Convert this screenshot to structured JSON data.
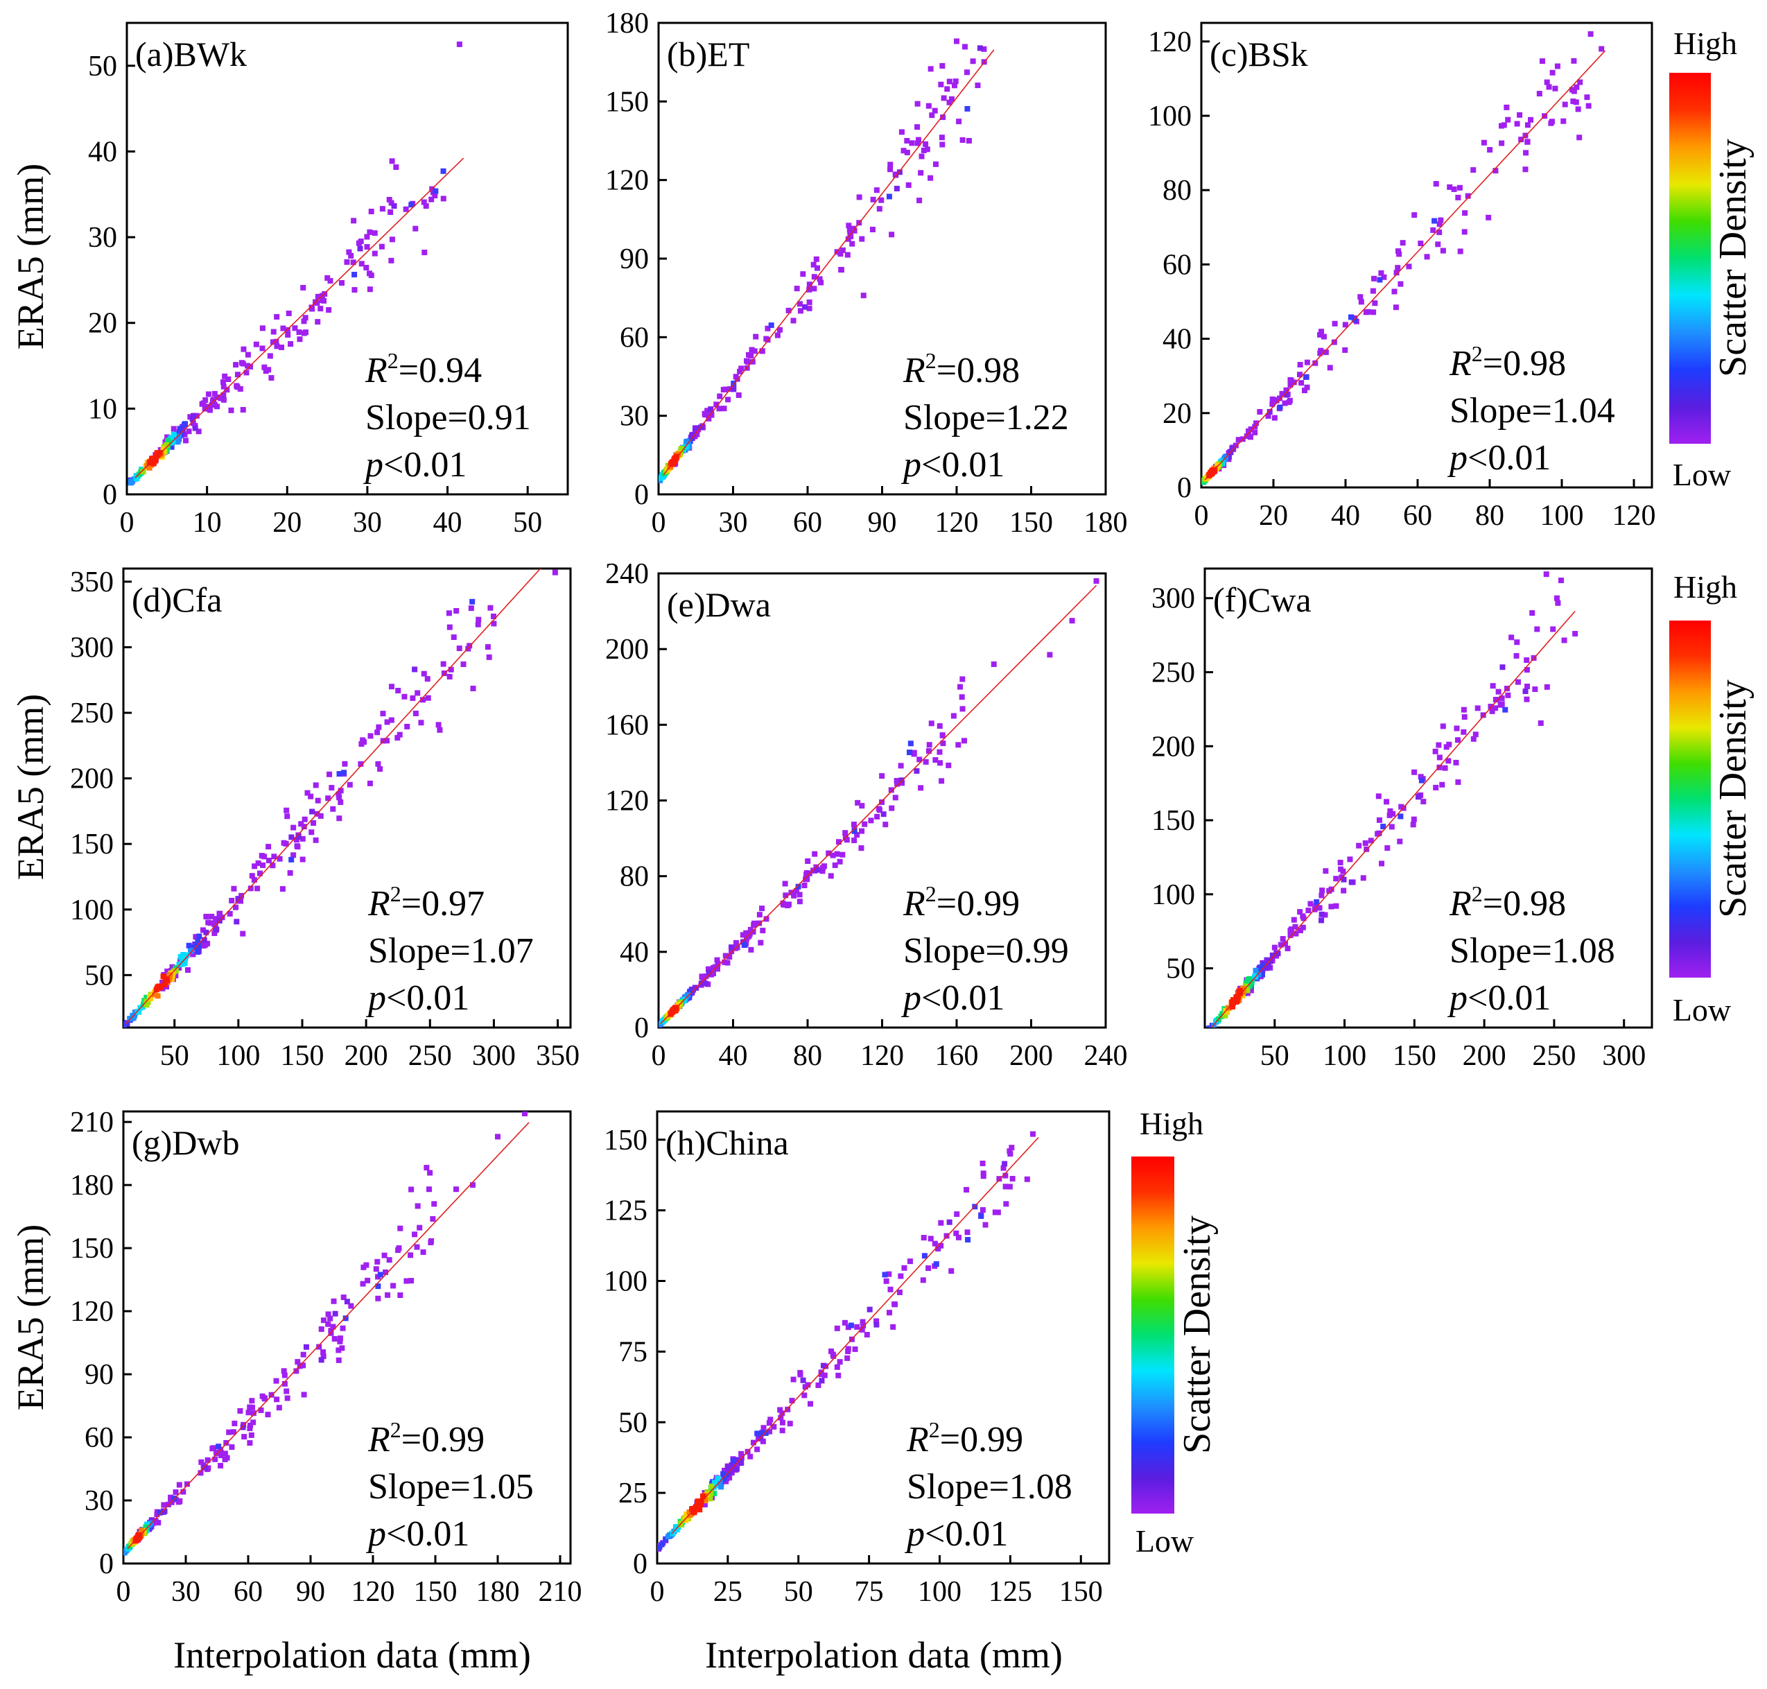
{
  "figure": {
    "ylabel": "ERA5 (mm)",
    "xlabel": "Interpolation data (mm)"
  },
  "colorbar": {
    "title": "Scatter Density",
    "high": "High",
    "low": "Low",
    "colors": [
      "#a020f0",
      "#5a1ee0",
      "#1e3cff",
      "#1e90ff",
      "#00e5ff",
      "#00e070",
      "#40dd00",
      "#e8e800",
      "#ff9a00",
      "#ff3000",
      "#ff0000"
    ],
    "point_colors": [
      "#a020f0",
      "#7a22ee",
      "#3a3cff",
      "#1e90ff",
      "#00dcff",
      "#00e070",
      "#9ae000",
      "#ffd000",
      "#ff7a00",
      "#ff1a00"
    ]
  },
  "fit_line_color": "#e02020",
  "chart_data": [
    {
      "id": "a",
      "type": "scatter",
      "title": "(a)BWk",
      "xlim": [
        0,
        55
      ],
      "ylim": [
        0,
        55
      ],
      "xticks": [
        0,
        10,
        20,
        30,
        40,
        50
      ],
      "yticks": [
        0,
        10,
        20,
        30,
        40,
        50
      ],
      "r2_prefix": "R",
      "r2_sup": "2",
      "r2_value": "=0.94",
      "slope": "Slope=0.91",
      "p_prefix": "p",
      "p_value": "<0.01",
      "slope_value": 0.91,
      "intercept": 1.0,
      "fit_range": [
        1,
        42
      ],
      "outliers": [
        [
          41.5,
          52.5
        ],
        [
          39.5,
          34.5
        ],
        [
          33,
          34
        ],
        [
          30.5,
          33
        ],
        [
          36,
          31
        ]
      ],
      "n_points": 260,
      "max_x": 40,
      "dense_center": 3.5,
      "dense_spread": 2.5,
      "noise": 0.09
    },
    {
      "id": "b",
      "type": "scatter",
      "title": "(b)ET",
      "xlim": [
        0,
        180
      ],
      "ylim": [
        0,
        180
      ],
      "xticks": [
        0,
        30,
        60,
        90,
        120,
        150,
        180
      ],
      "yticks": [
        0,
        30,
        60,
        90,
        120,
        150,
        180
      ],
      "r2_prefix": "R",
      "r2_sup": "2",
      "r2_value": "=0.98",
      "slope": "Slope=1.22",
      "p_prefix": "p",
      "p_value": "<0.01",
      "slope_value": 1.22,
      "intercept": 5.0,
      "fit_range": [
        2,
        135
      ],
      "outliers": [
        [
          120,
          173
        ],
        [
          131,
          170
        ],
        [
          125,
          135
        ],
        [
          100,
          135
        ]
      ],
      "n_points": 260,
      "max_x": 132,
      "dense_center": 6,
      "dense_spread": 5,
      "noise": 0.07
    },
    {
      "id": "c",
      "type": "scatter",
      "title": "(c)BSk",
      "xlim": [
        0,
        125
      ],
      "ylim": [
        0,
        125
      ],
      "xticks": [
        0,
        20,
        40,
        60,
        80,
        100,
        120
      ],
      "yticks": [
        0,
        20,
        40,
        60,
        80,
        100,
        120
      ],
      "r2_prefix": "R",
      "r2_sup": "2",
      "r2_value": "=0.98",
      "slope": "Slope=1.04",
      "p_prefix": "p",
      "p_value": "<0.01",
      "slope_value": 1.04,
      "intercept": 1.0,
      "fit_range": [
        1,
        112
      ],
      "outliers": [
        [
          108,
          122
        ],
        [
          107,
          105
        ],
        [
          111,
          118
        ],
        [
          97,
          98
        ]
      ],
      "n_points": 260,
      "max_x": 108,
      "dense_center": 3,
      "dense_spread": 3,
      "noise": 0.08
    },
    {
      "id": "d",
      "type": "scatter",
      "title": "(d)Cfa",
      "xlim": [
        10,
        360
      ],
      "ylim": [
        10,
        360
      ],
      "xticks": [
        50,
        100,
        150,
        200,
        250,
        300,
        350
      ],
      "yticks": [
        50,
        100,
        150,
        200,
        250,
        300,
        350
      ],
      "r2_prefix": "R",
      "r2_sup": "2",
      "r2_value": "=0.97",
      "slope": "Slope=1.07",
      "p_prefix": "p",
      "p_value": "<0.01",
      "slope_value": 1.07,
      "intercept": 0.0,
      "fit_range": [
        12,
        345
      ],
      "outliers": [
        [
          348,
          357
        ],
        [
          300,
          318
        ],
        [
          265,
          326
        ],
        [
          220,
          270
        ]
      ],
      "n_points": 280,
      "max_x": 300,
      "dense_center": 40,
      "dense_spread": 20,
      "noise": 0.07
    },
    {
      "id": "e",
      "type": "scatter",
      "title": "(e)Dwa",
      "xlim": [
        0,
        240
      ],
      "ylim": [
        0,
        240
      ],
      "xticks": [
        0,
        40,
        80,
        120,
        160,
        200,
        240
      ],
      "yticks": [
        0,
        40,
        80,
        120,
        160,
        200,
        240
      ],
      "r2_prefix": "R",
      "r2_sup": "2",
      "r2_value": "=0.99",
      "slope": "Slope=0.99",
      "p_prefix": "p",
      "p_value": "<0.01",
      "slope_value": 0.99,
      "intercept": 1.0,
      "fit_range": [
        1,
        235
      ],
      "outliers": [
        [
          235,
          236
        ],
        [
          222,
          215
        ],
        [
          210,
          197
        ],
        [
          180,
          192
        ]
      ],
      "n_points": 270,
      "max_x": 165,
      "dense_center": 8,
      "dense_spread": 6,
      "noise": 0.06
    },
    {
      "id": "f",
      "type": "scatter",
      "title": "(f)Cwa",
      "xlim": [
        0,
        320
      ],
      "ylim": [
        10,
        320
      ],
      "xticks": [
        50,
        100,
        150,
        200,
        250,
        300
      ],
      "yticks": [
        50,
        100,
        150,
        200,
        250,
        300
      ],
      "r2_prefix": "R",
      "r2_sup": "2",
      "r2_value": "=0.98",
      "slope": "Slope=1.08",
      "p_prefix": "p",
      "p_value": "<0.01",
      "slope_value": 1.08,
      "intercept": 5.0,
      "fit_range": [
        3,
        265
      ],
      "outliers": [
        [
          255,
          312
        ],
        [
          265,
          276
        ],
        [
          252,
          300
        ],
        [
          245,
          240
        ]
      ],
      "n_points": 270,
      "max_x": 260,
      "dense_center": 22,
      "dense_spread": 14,
      "noise": 0.07
    },
    {
      "id": "g",
      "type": "scatter",
      "title": "(g)Dwb",
      "xlim": [
        0,
        215
      ],
      "ylim": [
        0,
        215
      ],
      "xticks": [
        0,
        30,
        60,
        90,
        120,
        150,
        180,
        210
      ],
      "yticks": [
        0,
        30,
        60,
        90,
        120,
        150,
        180,
        210
      ],
      "r2_prefix": "R",
      "r2_sup": "2",
      "r2_value": "=0.99",
      "slope": "Slope=1.05",
      "p_prefix": "p",
      "p_value": "<0.01",
      "slope_value": 1.05,
      "intercept": 5.0,
      "fit_range": [
        2,
        195
      ],
      "outliers": [
        [
          193,
          214
        ],
        [
          180,
          203
        ],
        [
          168,
          180
        ],
        [
          160,
          178
        ],
        [
          147,
          178
        ]
      ],
      "n_points": 270,
      "max_x": 150,
      "dense_center": 7,
      "dense_spread": 5,
      "noise": 0.07
    },
    {
      "id": "h",
      "type": "scatter",
      "title": "(h)China",
      "xlim": [
        0,
        160
      ],
      "ylim": [
        0,
        160
      ],
      "xticks": [
        0,
        25,
        50,
        75,
        100,
        125,
        150
      ],
      "yticks": [
        0,
        25,
        50,
        75,
        100,
        125,
        150
      ],
      "r2_prefix": "R",
      "r2_sup": "2",
      "r2_value": "=0.99",
      "slope": "Slope=1.08",
      "p_prefix": "p",
      "p_value": "<0.01",
      "slope_value": 1.08,
      "intercept": 5.0,
      "fit_range": [
        5,
        135
      ],
      "outliers": [
        [
          133,
          152
        ],
        [
          131,
          136
        ],
        [
          125,
          145
        ]
      ],
      "n_points": 260,
      "max_x": 128,
      "dense_center": 14,
      "dense_spread": 8,
      "noise": 0.06
    }
  ]
}
